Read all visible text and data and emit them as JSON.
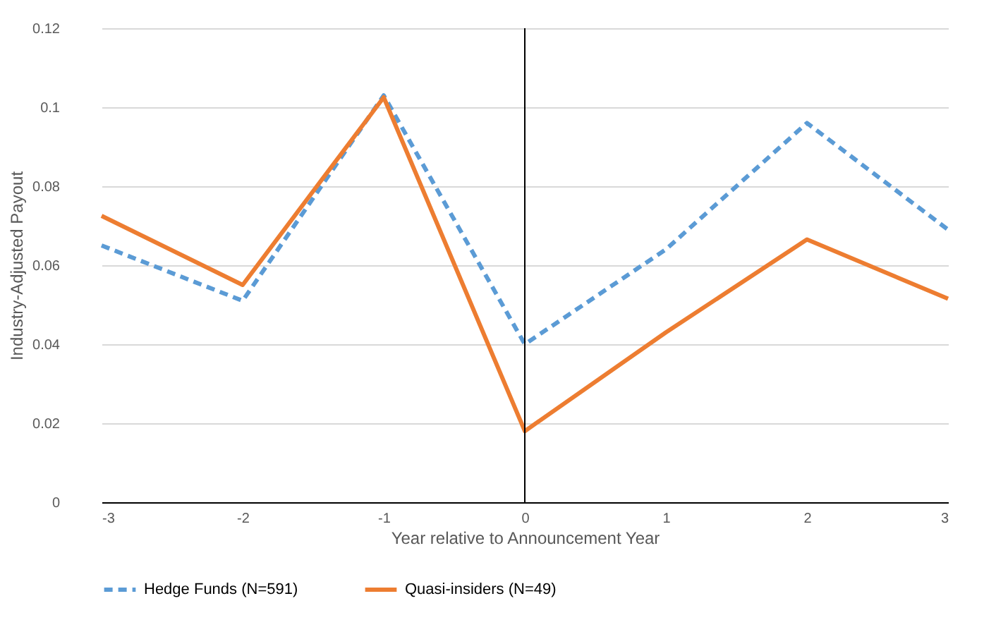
{
  "chart_data": {
    "type": "line",
    "xlabel": "Year relative to Announcement Year",
    "ylabel": "Industry-Adjusted Payout",
    "x": [
      -3,
      -2,
      -1,
      0,
      1,
      2,
      3
    ],
    "series": [
      {
        "name": "Hedge Funds (N=591)",
        "color": "#5b9bd5",
        "line_style": "dashed",
        "values": [
          0.065,
          0.051,
          0.103,
          0.04,
          0.064,
          0.096,
          0.069
        ]
      },
      {
        "name": "Quasi-insiders (N=49)",
        "color": "#ed7d31",
        "line_style": "solid",
        "values": [
          0.0725,
          0.055,
          0.1025,
          0.018,
          0.043,
          0.0665,
          0.0515
        ]
      }
    ],
    "xlim": [
      -3,
      3
    ],
    "xticks": [
      -3,
      -2,
      -1,
      0,
      1,
      2,
      3
    ],
    "ylim": [
      0,
      0.12
    ],
    "yticks": [
      0,
      0.02,
      0.04,
      0.06,
      0.08,
      0.1,
      0.12
    ],
    "ref_lines": [
      {
        "axis": "x",
        "value": 0,
        "color": "#000000"
      }
    ],
    "grid": "y",
    "legend": "bottom",
    "marker": "none"
  }
}
